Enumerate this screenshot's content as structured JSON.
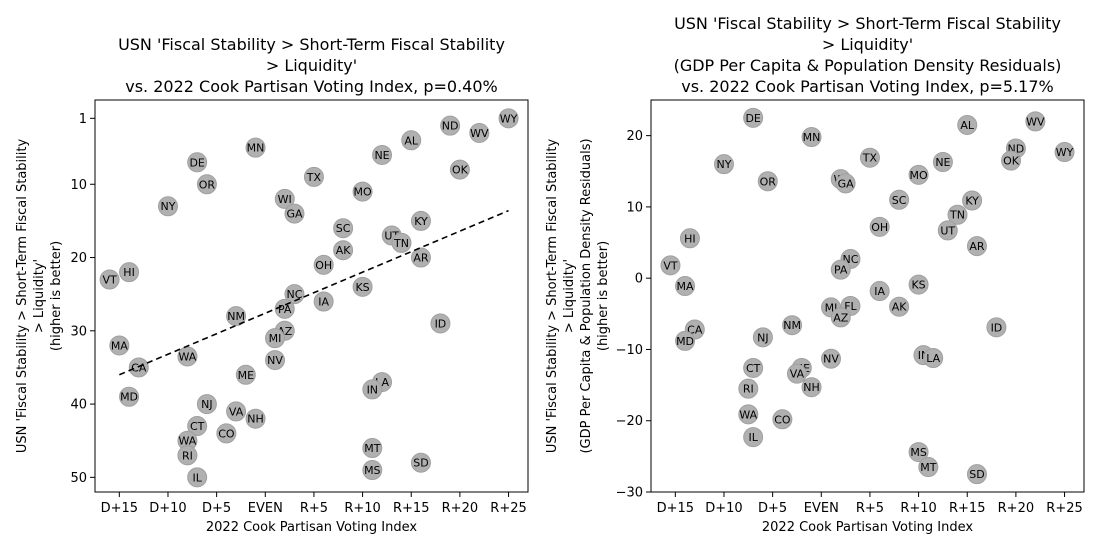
{
  "chart_data": [
    {
      "type": "scatter",
      "title": [
        "USN 'Fiscal Stability > Short-Term Fiscal Stability",
        "> Liquidity'",
        "vs. 2022 Cook Partisan Voting Index, p=0.40%"
      ],
      "xlabel": "2022 Cook Partisan Voting Index",
      "ylabel": [
        "USN 'Fiscal Stability > Short-Term Fiscal Stability",
        "> Liquidity'",
        "(higher is better)"
      ],
      "xlim": [
        -17.5,
        27
      ],
      "ylim": [
        52,
        -1.5
      ],
      "y_inverted": true,
      "xticks": [
        -15,
        -10,
        -5,
        0,
        5,
        10,
        15,
        20,
        25
      ],
      "xtick_labels": [
        "D+15",
        "D+10",
        "D+5",
        "EVEN",
        "R+5",
        "R+10",
        "R+15",
        "R+20",
        "R+25"
      ],
      "yticks": [
        1,
        10,
        20,
        30,
        40,
        50
      ],
      "ytick_labels": [
        "1",
        "10",
        "20",
        "30",
        "40",
        "50"
      ],
      "trendline": {
        "x": [
          -15,
          25
        ],
        "y": [
          36,
          13.6
        ],
        "style": "dashed"
      },
      "points": [
        {
          "label": "WY",
          "x": 25,
          "y": 1
        },
        {
          "label": "ND",
          "x": 19,
          "y": 2
        },
        {
          "label": "WV",
          "x": 22,
          "y": 3
        },
        {
          "label": "AL",
          "x": 15,
          "y": 4
        },
        {
          "label": "MN",
          "x": -1,
          "y": 5
        },
        {
          "label": "NE",
          "x": 12,
          "y": 6
        },
        {
          "label": "DE",
          "x": -7,
          "y": 7
        },
        {
          "label": "OK",
          "x": 20,
          "y": 8
        },
        {
          "label": "TX",
          "x": 5,
          "y": 9
        },
        {
          "label": "OR",
          "x": -6,
          "y": 10
        },
        {
          "label": "MO",
          "x": 10,
          "y": 11
        },
        {
          "label": "WI",
          "x": 2,
          "y": 12
        },
        {
          "label": "NY",
          "x": -10,
          "y": 13
        },
        {
          "label": "GA",
          "x": 3,
          "y": 14
        },
        {
          "label": "KY",
          "x": 16,
          "y": 15
        },
        {
          "label": "SC",
          "x": 8,
          "y": 16
        },
        {
          "label": "UT",
          "x": 13,
          "y": 17
        },
        {
          "label": "TN",
          "x": 14,
          "y": 18
        },
        {
          "label": "AK",
          "x": 8,
          "y": 19
        },
        {
          "label": "AR",
          "x": 16,
          "y": 20
        },
        {
          "label": "OH",
          "x": 6,
          "y": 21
        },
        {
          "label": "HI",
          "x": -14,
          "y": 22
        },
        {
          "label": "VT",
          "x": -16,
          "y": 23
        },
        {
          "label": "KS",
          "x": 10,
          "y": 24
        },
        {
          "label": "NC",
          "x": 3,
          "y": 25
        },
        {
          "label": "IA",
          "x": 6,
          "y": 26
        },
        {
          "label": "PA",
          "x": 2,
          "y": 27
        },
        {
          "label": "NM",
          "x": -3,
          "y": 28
        },
        {
          "label": "ID",
          "x": 18,
          "y": 29
        },
        {
          "label": "AZ",
          "x": 2,
          "y": 30
        },
        {
          "label": "MI",
          "x": 1,
          "y": 31
        },
        {
          "label": "MA",
          "x": -15,
          "y": 32
        },
        {
          "label": "WA",
          "x": -8,
          "y": 33.5
        },
        {
          "label": "CA",
          "x": -13,
          "y": 35
        },
        {
          "label": "NV",
          "x": 1,
          "y": 34
        },
        {
          "label": "ME",
          "x": -2,
          "y": 36
        },
        {
          "label": "LA",
          "x": 12,
          "y": 37
        },
        {
          "label": "IN",
          "x": 11,
          "y": 38
        },
        {
          "label": "MD",
          "x": -14,
          "y": 39
        },
        {
          "label": "NJ",
          "x": -6,
          "y": 40
        },
        {
          "label": "VA",
          "x": -3,
          "y": 41
        },
        {
          "label": "NH",
          "x": -1,
          "y": 42
        },
        {
          "label": "CT",
          "x": -7,
          "y": 43
        },
        {
          "label": "CO",
          "x": -4,
          "y": 44
        },
        {
          "label": "WA2",
          "x": -8,
          "y": 45
        },
        {
          "label": "MT",
          "x": 11,
          "y": 46
        },
        {
          "label": "RI",
          "x": -8,
          "y": 47
        },
        {
          "label": "SD",
          "x": 16,
          "y": 48
        },
        {
          "label": "MS",
          "x": 11,
          "y": 49
        },
        {
          "label": "IL",
          "x": -7,
          "y": 50
        }
      ]
    },
    {
      "type": "scatter",
      "title": [
        "USN 'Fiscal Stability > Short-Term Fiscal Stability",
        "> Liquidity'",
        "(GDP Per Capita & Population Density Residuals)",
        "vs. 2022 Cook Partisan Voting Index, p=5.17%"
      ],
      "xlabel": "2022 Cook Partisan Voting Index",
      "ylabel": [
        "USN 'Fiscal Stability > Short-Term Fiscal Stability",
        "> Liquidity'",
        "(GDP Per Capita & Population Density Residuals)",
        "(higher is better)"
      ],
      "xlim": [
        -17.5,
        27
      ],
      "ylim": [
        -30,
        25
      ],
      "xticks": [
        -15,
        -10,
        -5,
        0,
        5,
        10,
        15,
        20,
        25
      ],
      "xtick_labels": [
        "D+15",
        "D+10",
        "D+5",
        "EVEN",
        "R+5",
        "R+10",
        "R+15",
        "R+20",
        "R+25"
      ],
      "yticks": [
        -30,
        -20,
        -10,
        0,
        10,
        20
      ],
      "ytick_labels": [
        "−30",
        "−20",
        "−10",
        "0",
        "10",
        "20"
      ],
      "points": [
        {
          "label": "DE",
          "x": -7,
          "y": 22.5
        },
        {
          "label": "WV",
          "x": 22,
          "y": 22
        },
        {
          "label": "AL",
          "x": 15,
          "y": 21.5
        },
        {
          "label": "MN",
          "x": -1,
          "y": 19.8
        },
        {
          "label": "ND",
          "x": 20,
          "y": 18.2
        },
        {
          "label": "WY",
          "x": 25,
          "y": 17.7
        },
        {
          "label": "TX",
          "x": 5,
          "y": 16.9
        },
        {
          "label": "OK",
          "x": 19.5,
          "y": 16.5
        },
        {
          "label": "NE",
          "x": 12.5,
          "y": 16.3
        },
        {
          "label": "NY",
          "x": -10,
          "y": 16
        },
        {
          "label": "MO",
          "x": 10,
          "y": 14.5
        },
        {
          "label": "WI",
          "x": 2,
          "y": 13.9
        },
        {
          "label": "OR",
          "x": -5.5,
          "y": 13.6
        },
        {
          "label": "GA",
          "x": 2.5,
          "y": 13.3
        },
        {
          "label": "SC",
          "x": 8,
          "y": 11
        },
        {
          "label": "KY",
          "x": 15.5,
          "y": 10.9
        },
        {
          "label": "TN",
          "x": 14,
          "y": 8.9
        },
        {
          "label": "OH",
          "x": 6,
          "y": 7.2
        },
        {
          "label": "UT",
          "x": 13,
          "y": 6.7
        },
        {
          "label": "HI",
          "x": -13.5,
          "y": 5.6
        },
        {
          "label": "AR",
          "x": 16,
          "y": 4.5
        },
        {
          "label": "NC",
          "x": 3,
          "y": 2.7
        },
        {
          "label": "VT",
          "x": -15.5,
          "y": 1.8
        },
        {
          "label": "PA",
          "x": 2,
          "y": 1.2
        },
        {
          "label": "MA",
          "x": -14,
          "y": -1.1
        },
        {
          "label": "KS",
          "x": 10,
          "y": -0.9
        },
        {
          "label": "IA",
          "x": 6,
          "y": -1.8
        },
        {
          "label": "MI",
          "x": 1,
          "y": -4.1
        },
        {
          "label": "FL",
          "x": 3,
          "y": -3.9
        },
        {
          "label": "AK",
          "x": 8,
          "y": -4
        },
        {
          "label": "AZ",
          "x": 2,
          "y": -5.5
        },
        {
          "label": "NM",
          "x": -3,
          "y": -6.6
        },
        {
          "label": "ID",
          "x": 18,
          "y": -6.9
        },
        {
          "label": "CA",
          "x": -13,
          "y": -7.2
        },
        {
          "label": "NJ",
          "x": -6,
          "y": -8.3
        },
        {
          "label": "MD",
          "x": -14,
          "y": -8.8
        },
        {
          "label": "IN",
          "x": 10.5,
          "y": -10.8
        },
        {
          "label": "LA",
          "x": 11.5,
          "y": -11.2
        },
        {
          "label": "NV",
          "x": 1,
          "y": -11.3
        },
        {
          "label": "CT",
          "x": -7,
          "y": -12.6
        },
        {
          "label": "ME",
          "x": -2,
          "y": -12.6
        },
        {
          "label": "VA",
          "x": -2.5,
          "y": -13.4
        },
        {
          "label": "RI",
          "x": -7.5,
          "y": -15.5
        },
        {
          "label": "NH",
          "x": -1,
          "y": -15.3
        },
        {
          "label": "WA",
          "x": -7.5,
          "y": -19.1
        },
        {
          "label": "CO",
          "x": -4,
          "y": -19.8
        },
        {
          "label": "IL",
          "x": -7,
          "y": -22.3
        },
        {
          "label": "MS",
          "x": 10,
          "y": -24.4
        },
        {
          "label": "MT",
          "x": 11,
          "y": -26.5
        },
        {
          "label": "SD",
          "x": 16,
          "y": -27.5
        }
      ]
    }
  ]
}
